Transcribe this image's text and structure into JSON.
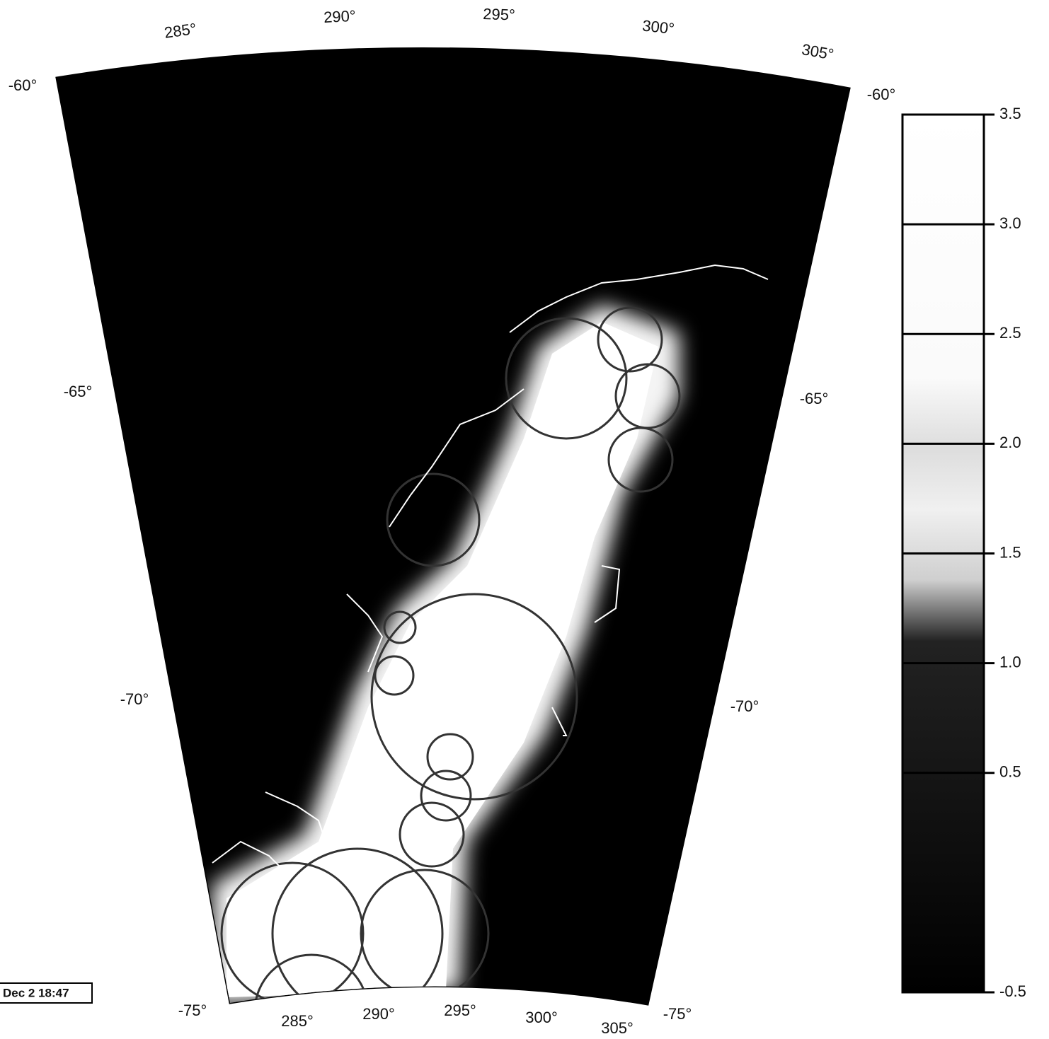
{
  "map": {
    "top_lon_labels": [
      "285°",
      "290°",
      "295°",
      "300°",
      "305°"
    ],
    "bottom_lon_labels": [
      "285°",
      "290°",
      "295°",
      "300°",
      "305°"
    ],
    "left_lat_labels": [
      "-60°",
      "-65°",
      "-70°",
      "-75°"
    ],
    "right_lat_labels": [
      "-60°",
      "-65°",
      "-70°",
      "-75°"
    ]
  },
  "colorbar": {
    "lim": [
      -0.5,
      3.5
    ],
    "ticks": [
      {
        "value": 3.5,
        "label": "3.5"
      },
      {
        "value": 3,
        "label": "3.0"
      },
      2.5,
      {
        "value": 2,
        "label": "2.0"
      },
      1.5,
      {
        "value": 1,
        "label": "1.0"
      },
      0.5,
      -0.5
    ]
  },
  "timestamp": "Dec 2 18:47"
}
